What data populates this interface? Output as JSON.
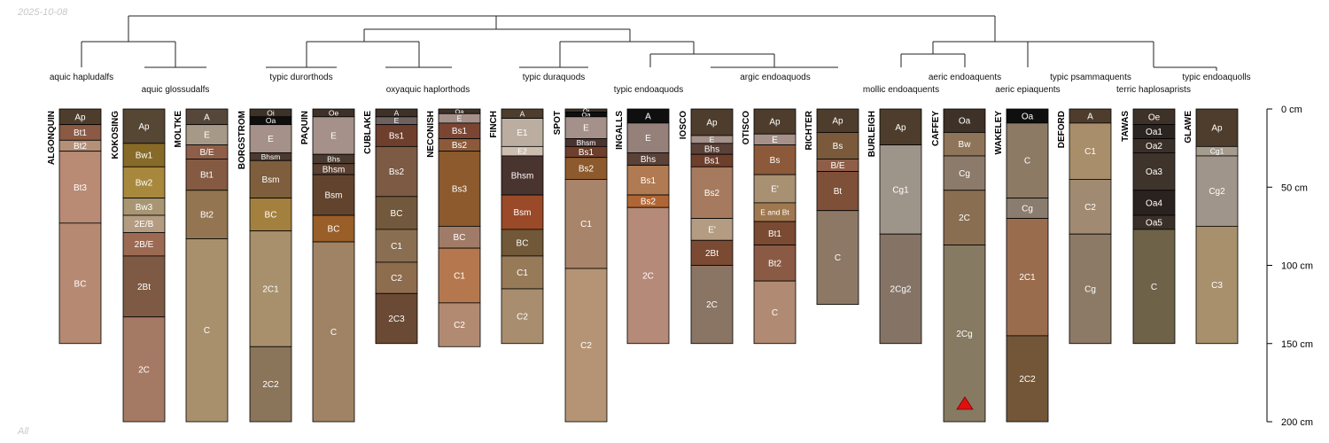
{
  "date": "2025-10-08",
  "footer": "All",
  "depth_axis": {
    "unit": "cm",
    "max_depth_cm": 200,
    "ticks": [
      0,
      50,
      100,
      150,
      200
    ],
    "tick_labels": [
      "0 cm",
      "50 cm",
      "100 cm",
      "150 cm",
      "200 cm"
    ]
  },
  "taxa_labels": [
    "aquic hapludalfs",
    "aquic glossudalfs",
    "typic durorthods",
    "oxyaquic haplorthods",
    "typic duraquods",
    "typic endoaquods",
    "argic endoaquods",
    "mollic endoaquents",
    "aeric endoaquents",
    "aeric epiaquents",
    "typic psammaquents",
    "terric haplosaprists",
    "typic endoaquolls"
  ],
  "profiles": [
    {
      "name": "ALGONQUIN",
      "horizons": [
        {
          "name": "Ap",
          "top": 0,
          "bottom": 10,
          "color": "#4e3d2c"
        },
        {
          "name": "Bt1",
          "top": 10,
          "bottom": 20,
          "color": "#8a5a44"
        },
        {
          "name": "Bt2",
          "top": 20,
          "bottom": 27,
          "color": "#b49078"
        },
        {
          "name": "Bt3",
          "top": 27,
          "bottom": 73,
          "color": "#b98a74"
        },
        {
          "name": "BC",
          "top": 73,
          "bottom": 150,
          "color": "#b68a72"
        }
      ]
    },
    {
      "name": "KOKOSING",
      "horizons": [
        {
          "name": "Ap",
          "top": 0,
          "bottom": 22,
          "color": "#564634"
        },
        {
          "name": "Bw1",
          "top": 22,
          "bottom": 37,
          "color": "#876a27"
        },
        {
          "name": "Bw2",
          "top": 37,
          "bottom": 57,
          "color": "#a8883c"
        },
        {
          "name": "Bw3",
          "top": 57,
          "bottom": 68,
          "color": "#a89572"
        },
        {
          "name": "2E/B",
          "top": 68,
          "bottom": 79,
          "color": "#b49c82"
        },
        {
          "name": "2B/E",
          "top": 79,
          "bottom": 94,
          "color": "#9c6a52"
        },
        {
          "name": "2Bt",
          "top": 94,
          "bottom": 133,
          "color": "#7e5a44"
        },
        {
          "name": "2C",
          "top": 133,
          "bottom": 200,
          "color": "#a57a64"
        }
      ]
    },
    {
      "name": "MOLTKE",
      "horizons": [
        {
          "name": "A",
          "top": 0,
          "bottom": 10,
          "color": "#56473a"
        },
        {
          "name": "E",
          "top": 10,
          "bottom": 23,
          "color": "#a79988"
        },
        {
          "name": "B/E",
          "top": 23,
          "bottom": 32,
          "color": "#8f5e49"
        },
        {
          "name": "Bt1",
          "top": 32,
          "bottom": 52,
          "color": "#845a42"
        },
        {
          "name": "Bt2",
          "top": 52,
          "bottom": 83,
          "color": "#937551"
        },
        {
          "name": "C",
          "top": 83,
          "bottom": 200,
          "color": "#a8906c"
        }
      ]
    },
    {
      "name": "BORGSTROM",
      "horizons": [
        {
          "name": "Oi",
          "top": 0,
          "bottom": 5,
          "color": "#3e3128"
        },
        {
          "name": "Oa",
          "top": 5,
          "bottom": 10,
          "color": "#0f0f0f"
        },
        {
          "name": "E",
          "top": 10,
          "bottom": 28,
          "color": "#a5918a"
        },
        {
          "name": "Bhsm",
          "top": 28,
          "bottom": 33,
          "color": "#4a3a30"
        },
        {
          "name": "Bsm",
          "top": 33,
          "bottom": 57,
          "color": "#7e5e3c"
        },
        {
          "name": "BC",
          "top": 57,
          "bottom": 78,
          "color": "#a4803e"
        },
        {
          "name": "2C1",
          "top": 78,
          "bottom": 152,
          "color": "#a8906c"
        },
        {
          "name": "2C2",
          "top": 152,
          "bottom": 200,
          "color": "#8a745a"
        }
      ]
    },
    {
      "name": "PAQUIN",
      "horizons": [
        {
          "name": "Oe",
          "top": 0,
          "bottom": 5,
          "color": "#3e3128"
        },
        {
          "name": "E",
          "top": 5,
          "bottom": 29,
          "color": "#a5918a"
        },
        {
          "name": "Bhs",
          "top": 29,
          "bottom": 35,
          "color": "#4a3a30"
        },
        {
          "name": "Bhsm",
          "top": 35,
          "bottom": 42,
          "color": "#5a4030"
        },
        {
          "name": "Bsm",
          "top": 42,
          "bottom": 68,
          "color": "#62442e"
        },
        {
          "name": "BC",
          "top": 68,
          "bottom": 85,
          "color": "#9a5e28"
        },
        {
          "name": "C",
          "top": 85,
          "bottom": 200,
          "color": "#a08364"
        }
      ]
    },
    {
      "name": "CUBLAKE",
      "horizons": [
        {
          "name": "A",
          "top": 0,
          "bottom": 5,
          "color": "#3e3128"
        },
        {
          "name": "E",
          "top": 5,
          "bottom": 10,
          "color": "#6e6260"
        },
        {
          "name": "Bs1",
          "top": 10,
          "bottom": 24,
          "color": "#6e3f2c"
        },
        {
          "name": "Bs2",
          "top": 24,
          "bottom": 56,
          "color": "#7c5a44"
        },
        {
          "name": "BC",
          "top": 56,
          "bottom": 77,
          "color": "#72583c"
        },
        {
          "name": "C1",
          "top": 77,
          "bottom": 98,
          "color": "#8a6e52"
        },
        {
          "name": "C2",
          "top": 98,
          "bottom": 118,
          "color": "#8e6c4e"
        },
        {
          "name": "2C3",
          "top": 118,
          "bottom": 150,
          "color": "#6a4a34"
        }
      ]
    },
    {
      "name": "NECONISH",
      "horizons": [
        {
          "name": "Oa",
          "top": 0,
          "bottom": 3,
          "color": "#3e3128"
        },
        {
          "name": "E",
          "top": 3,
          "bottom": 9,
          "color": "#a5918a"
        },
        {
          "name": "Bs1",
          "top": 9,
          "bottom": 19,
          "color": "#7a4532"
        },
        {
          "name": "Bs2",
          "top": 19,
          "bottom": 27,
          "color": "#8c5a3a"
        },
        {
          "name": "Bs3",
          "top": 27,
          "bottom": 75,
          "color": "#8c5a2c"
        },
        {
          "name": "BC",
          "top": 75,
          "bottom": 89,
          "color": "#a07c68"
        },
        {
          "name": "C1",
          "top": 89,
          "bottom": 124,
          "color": "#b5784e"
        },
        {
          "name": "C2",
          "top": 124,
          "bottom": 152,
          "color": "#b28a72"
        }
      ]
    },
    {
      "name": "FINCH",
      "horizons": [
        {
          "name": "A",
          "top": 0,
          "bottom": 6,
          "color": "#4e3d2c"
        },
        {
          "name": "E1",
          "top": 6,
          "bottom": 24,
          "color": "#bbaea0"
        },
        {
          "name": "E2",
          "top": 24,
          "bottom": 30,
          "color": "#cdbeb0"
        },
        {
          "name": "Bhsm",
          "top": 30,
          "bottom": 55,
          "color": "#4a3430"
        },
        {
          "name": "Bsm",
          "top": 55,
          "bottom": 77,
          "color": "#9a4a28"
        },
        {
          "name": "BC",
          "top": 77,
          "bottom": 94,
          "color": "#705838"
        },
        {
          "name": "C1",
          "top": 94,
          "bottom": 115,
          "color": "#977a58"
        },
        {
          "name": "C2",
          "top": 115,
          "bottom": 150,
          "color": "#a88e6e"
        }
      ]
    },
    {
      "name": "SPOT",
      "horizons": [
        {
          "name": "Oi",
          "top": 0,
          "bottom": 2,
          "color": "#3e3128"
        },
        {
          "name": "Oa",
          "top": 2,
          "bottom": 5,
          "color": "#0f0f0f"
        },
        {
          "name": "E",
          "top": 5,
          "bottom": 19,
          "color": "#a5918a"
        },
        {
          "name": "Bhsm",
          "top": 19,
          "bottom": 24,
          "color": "#4a3430"
        },
        {
          "name": "Bs1",
          "top": 24,
          "bottom": 31,
          "color": "#6e3f2c"
        },
        {
          "name": "Bs2",
          "top": 31,
          "bottom": 45,
          "color": "#8c5a2c"
        },
        {
          "name": "C1",
          "top": 45,
          "bottom": 102,
          "color": "#a8846a"
        },
        {
          "name": "C2",
          "top": 102,
          "bottom": 200,
          "color": "#b49474"
        }
      ]
    },
    {
      "name": "INGALLS",
      "horizons": [
        {
          "name": "A",
          "top": 0,
          "bottom": 9,
          "color": "#0f0f0f"
        },
        {
          "name": "E",
          "top": 9,
          "bottom": 28,
          "color": "#95807a"
        },
        {
          "name": "Bhs",
          "top": 28,
          "bottom": 36,
          "color": "#5a4238"
        },
        {
          "name": "Bs1",
          "top": 36,
          "bottom": 55,
          "color": "#b07a52"
        },
        {
          "name": "Bs2",
          "top": 55,
          "bottom": 63,
          "color": "#b06634"
        },
        {
          "name": "2C",
          "top": 63,
          "bottom": 150,
          "color": "#b58a78"
        }
      ]
    },
    {
      "name": "IOSCO",
      "horizons": [
        {
          "name": "Ap",
          "top": 0,
          "bottom": 17,
          "color": "#4e3d2c"
        },
        {
          "name": "E",
          "top": 17,
          "bottom": 22,
          "color": "#a5918a"
        },
        {
          "name": "Bhs",
          "top": 22,
          "bottom": 29,
          "color": "#5a4238"
        },
        {
          "name": "Bs1",
          "top": 29,
          "bottom": 37,
          "color": "#6e3f2c"
        },
        {
          "name": "Bs2",
          "top": 37,
          "bottom": 70,
          "color": "#a57a5e"
        },
        {
          "name": "E'",
          "top": 70,
          "bottom": 84,
          "color": "#b49c82"
        },
        {
          "name": "2Bt",
          "top": 84,
          "bottom": 100,
          "color": "#7a4a32"
        },
        {
          "name": "2C",
          "top": 100,
          "bottom": 150,
          "color": "#8a7464"
        }
      ]
    },
    {
      "name": "OTISCO",
      "horizons": [
        {
          "name": "Ap",
          "top": 0,
          "bottom": 16,
          "color": "#4e3d2c"
        },
        {
          "name": "E",
          "top": 16,
          "bottom": 23,
          "color": "#a5918a"
        },
        {
          "name": "Bs",
          "top": 23,
          "bottom": 42,
          "color": "#8c5a3a"
        },
        {
          "name": "E'",
          "top": 42,
          "bottom": 60,
          "color": "#a89072"
        },
        {
          "name": "E and Bt",
          "top": 60,
          "bottom": 72,
          "color": "#a07850"
        },
        {
          "name": "Bt1",
          "top": 72,
          "bottom": 87,
          "color": "#7a4a32"
        },
        {
          "name": "Bt2",
          "top": 87,
          "bottom": 110,
          "color": "#8a5a44"
        },
        {
          "name": "C",
          "top": 110,
          "bottom": 150,
          "color": "#b08a72"
        }
      ]
    },
    {
      "name": "RICHTER",
      "horizons": [
        {
          "name": "Ap",
          "top": 0,
          "bottom": 15,
          "color": "#4e3d2c"
        },
        {
          "name": "Bs",
          "top": 15,
          "bottom": 32,
          "color": "#7a5a3a"
        },
        {
          "name": "B/E",
          "top": 32,
          "bottom": 40,
          "color": "#8f5e49"
        },
        {
          "name": "Bt",
          "top": 40,
          "bottom": 65,
          "color": "#7e5038"
        },
        {
          "name": "C",
          "top": 65,
          "bottom": 125,
          "color": "#8c7864"
        }
      ]
    },
    {
      "name": "BURLEIGH",
      "horizons": [
        {
          "name": "Ap",
          "top": 0,
          "bottom": 23,
          "color": "#4e3d2c"
        },
        {
          "name": "Cg1",
          "top": 23,
          "bottom": 80,
          "color": "#9e958a"
        },
        {
          "name": "2Cg2",
          "top": 80,
          "bottom": 150,
          "color": "#857466"
        }
      ]
    },
    {
      "name": "CAFFEY",
      "horizons": [
        {
          "name": "Oa",
          "top": 0,
          "bottom": 15,
          "color": "#3e3128"
        },
        {
          "name": "Bw",
          "top": 15,
          "bottom": 30,
          "color": "#8e7458"
        },
        {
          "name": "Cg",
          "top": 30,
          "bottom": 52,
          "color": "#8c7b6a"
        },
        {
          "name": "2C",
          "top": 52,
          "bottom": 87,
          "color": "#8a6e52"
        },
        {
          "name": "2Cg",
          "top": 87,
          "bottom": 200,
          "color": "#877a62"
        }
      ]
    },
    {
      "name": "WAKELEY",
      "horizons": [
        {
          "name": "Oa",
          "top": 0,
          "bottom": 9,
          "color": "#0f0f0f"
        },
        {
          "name": "C",
          "top": 9,
          "bottom": 57,
          "color": "#8c7a64"
        },
        {
          "name": "Cg",
          "top": 57,
          "bottom": 70,
          "color": "#8a7c6e"
        },
        {
          "name": "2C1",
          "top": 70,
          "bottom": 145,
          "color": "#9a6c4e"
        },
        {
          "name": "2C2",
          "top": 145,
          "bottom": 200,
          "color": "#735638"
        }
      ]
    },
    {
      "name": "DEFORD",
      "horizons": [
        {
          "name": "A",
          "top": 0,
          "bottom": 9,
          "color": "#4e3d2c"
        },
        {
          "name": "C1",
          "top": 9,
          "bottom": 45,
          "color": "#a88e6a"
        },
        {
          "name": "C2",
          "top": 45,
          "bottom": 80,
          "color": "#a08a72"
        },
        {
          "name": "Cg",
          "top": 80,
          "bottom": 150,
          "color": "#8c7a66"
        }
      ]
    },
    {
      "name": "TAWAS",
      "horizons": [
        {
          "name": "Oe",
          "top": 0,
          "bottom": 10,
          "color": "#3e3128"
        },
        {
          "name": "Oa1",
          "top": 10,
          "bottom": 19,
          "color": "#2c2420"
        },
        {
          "name": "Oa2",
          "top": 19,
          "bottom": 28,
          "color": "#3a3028"
        },
        {
          "name": "Oa3",
          "top": 28,
          "bottom": 52,
          "color": "#3e342c"
        },
        {
          "name": "Oa4",
          "top": 52,
          "bottom": 68,
          "color": "#2a221e"
        },
        {
          "name": "Oa5",
          "top": 68,
          "bottom": 77,
          "color": "#3a3028"
        },
        {
          "name": "C",
          "top": 77,
          "bottom": 150,
          "color": "#6e6248"
        }
      ]
    },
    {
      "name": "GLAWE",
      "horizons": [
        {
          "name": "Ap",
          "top": 0,
          "bottom": 24,
          "color": "#4e3d2c"
        },
        {
          "name": "Cg1",
          "top": 24,
          "bottom": 30,
          "color": "#a59c8e"
        },
        {
          "name": "Cg2",
          "top": 30,
          "bottom": 75,
          "color": "#a0958a"
        },
        {
          "name": "C3",
          "top": 75,
          "bottom": 150,
          "color": "#a8906c"
        }
      ]
    }
  ]
}
